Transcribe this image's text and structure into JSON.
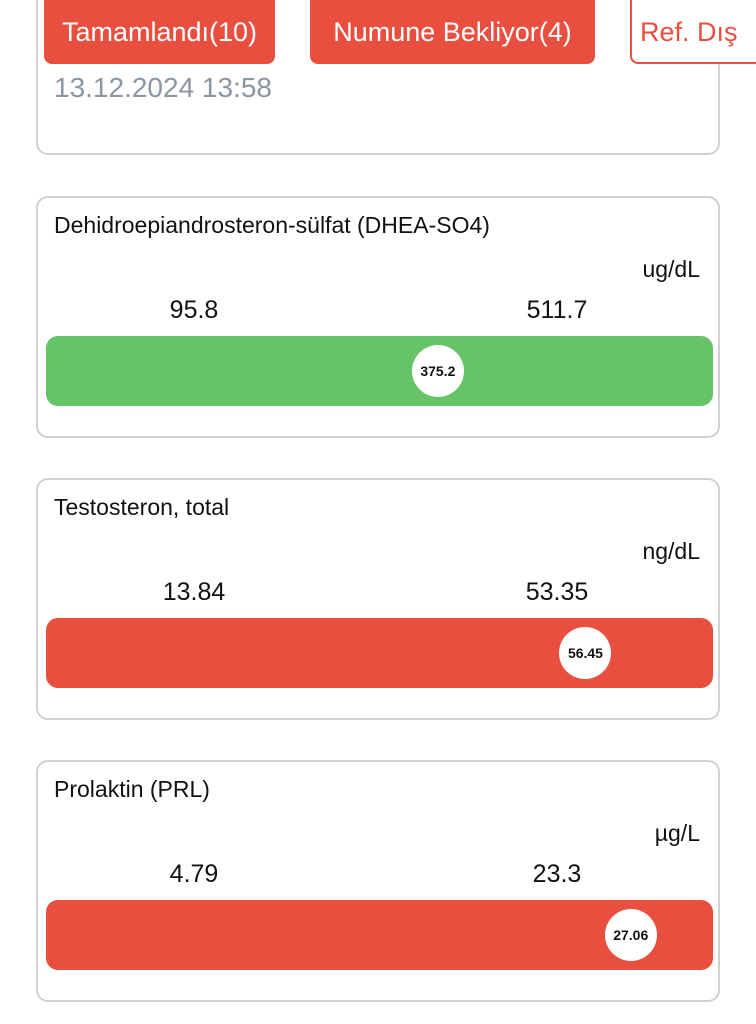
{
  "tabs": [
    {
      "label": "Tamamlandı(10)"
    },
    {
      "label": "Numune Bekliyor(4)"
    },
    {
      "label": "Ref. Dış"
    }
  ],
  "date_card": {
    "date": "13.12.2024 13:58"
  },
  "cards": [
    {
      "name": "Dehidroepiandrosteron-sülfat (DHEA-SO4)",
      "unit": "ug/dL",
      "low": 95.8,
      "high": 511.7,
      "value": 375.2,
      "color": "#66c466"
    },
    {
      "name": "Testosteron, total",
      "unit": "ng/dL",
      "low": 13.84,
      "high": 53.35,
      "value": 56.45,
      "color": "#e84f3f"
    },
    {
      "name": "Prolaktin (PRL)",
      "unit": "µg/L",
      "low": 4.79,
      "high": 23.3,
      "value": 27.06,
      "color": "#e84f3f"
    }
  ]
}
